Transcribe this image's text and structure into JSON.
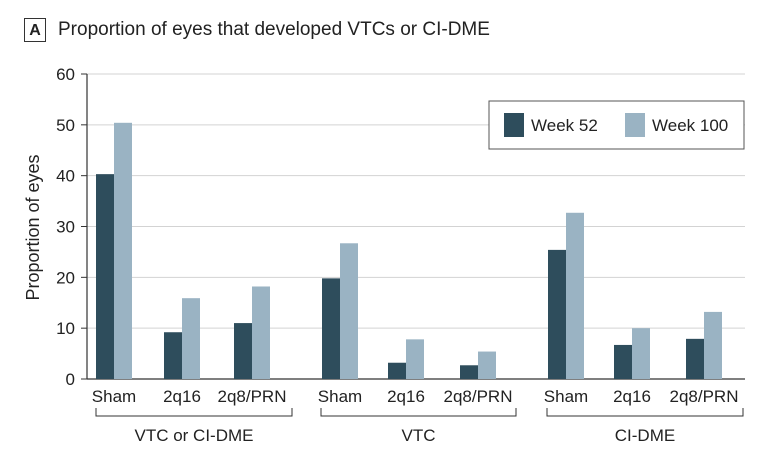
{
  "chart_data": {
    "type": "bar",
    "panel_label": "A",
    "title": "Proportion of eyes that developed VTCs or CI-DME",
    "ylabel": "Proportion of eyes",
    "xlabel": "",
    "ylim": [
      0,
      60
    ],
    "yticks": [
      0,
      10,
      20,
      30,
      40,
      50,
      60
    ],
    "grid": true,
    "legend_position": "top-right",
    "groups": [
      {
        "label": "VTC or CI-DME",
        "categories": [
          "Sham",
          "2q16",
          "2q8/PRN"
        ]
      },
      {
        "label": "VTC",
        "categories": [
          "Sham",
          "2q16",
          "2q8/PRN"
        ]
      },
      {
        "label": "CI-DME",
        "categories": [
          "Sham",
          "2q16",
          "2q8/PRN"
        ]
      }
    ],
    "series": [
      {
        "name": "Week 52",
        "color": "#2e4d5c",
        "values": [
          40.3,
          9.2,
          11.0,
          19.8,
          3.2,
          2.7,
          25.4,
          6.7,
          7.9
        ]
      },
      {
        "name": "Week 100",
        "color": "#9ab3c3",
        "values": [
          50.4,
          15.9,
          18.2,
          26.7,
          7.8,
          5.4,
          32.7,
          10.0,
          13.2
        ]
      }
    ]
  }
}
